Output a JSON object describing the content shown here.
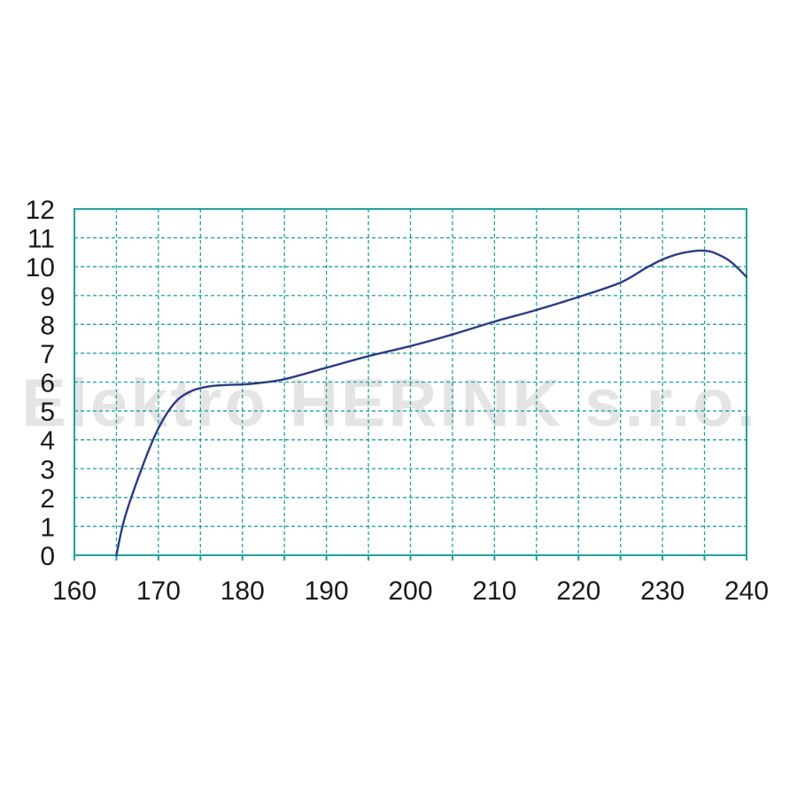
{
  "watermark": "Elektro HERINK s.r.o.",
  "colors": {
    "grid": "#1ea3a0",
    "line": "#2b3c85",
    "text": "#1a1a1a",
    "watermark": "#e4e4e4"
  },
  "chart_data": {
    "type": "line",
    "title": "",
    "xlabel": "",
    "ylabel": "",
    "xlim": [
      160,
      240
    ],
    "ylim": [
      0,
      12
    ],
    "x_ticks": [
      160,
      170,
      180,
      190,
      200,
      210,
      220,
      230,
      240
    ],
    "y_ticks": [
      0,
      1,
      2,
      3,
      4,
      5,
      6,
      7,
      8,
      9,
      10,
      11,
      12
    ],
    "grid": true,
    "legend": "none",
    "series": [
      {
        "x": [
          165,
          166,
          168,
          170,
          172,
          174,
          176,
          178,
          180,
          182,
          185,
          190,
          195,
          200,
          205,
          210,
          215,
          220,
          225,
          228,
          230,
          232,
          234,
          235,
          236,
          238,
          240
        ],
        "y": [
          0,
          1.3,
          3.0,
          4.4,
          5.3,
          5.7,
          5.85,
          5.9,
          5.92,
          5.97,
          6.1,
          6.5,
          6.9,
          7.25,
          7.65,
          8.1,
          8.5,
          8.95,
          9.45,
          9.95,
          10.25,
          10.45,
          10.55,
          10.55,
          10.5,
          10.2,
          9.65
        ]
      }
    ]
  }
}
